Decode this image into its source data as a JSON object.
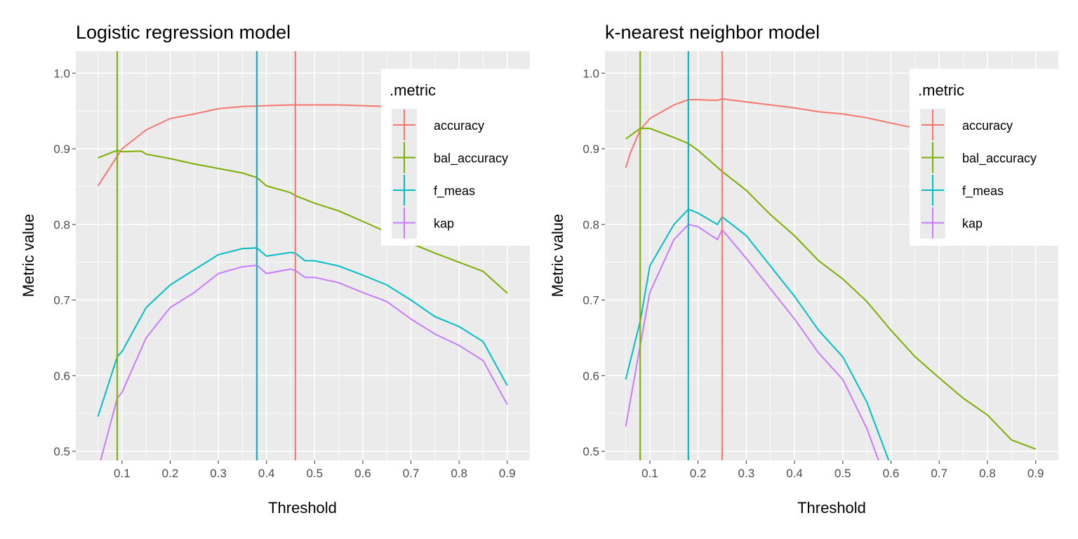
{
  "colors": {
    "accuracy": "#F8766D",
    "bal_accuracy": "#7CAE00",
    "f_meas": "#00BFC4",
    "kap": "#C77CFF",
    "panel": "#EBEBEB",
    "grid": "#FFFFFF"
  },
  "chart_data": [
    {
      "type": "line",
      "title": "Logistic regression model",
      "xlabel": "Threshold",
      "ylabel": "Metric value",
      "xlim": [
        0.004,
        0.947
      ],
      "ylim": [
        0.488,
        1.029
      ],
      "xticks": [
        "0.1",
        "0.2",
        "0.3",
        "0.4",
        "0.5",
        "0.6",
        "0.7",
        "0.8",
        "0.9"
      ],
      "yticks": [
        "0.5",
        "0.6",
        "0.7",
        "0.8",
        "0.9",
        "1.0"
      ],
      "grid": true,
      "legend": {
        "title": ".metric",
        "position": "top-right",
        "entries": [
          "accuracy",
          "bal_accuracy",
          "f_meas",
          "kap"
        ]
      },
      "vlines": {
        "accuracy": 0.46,
        "bal_accuracy": 0.09,
        "f_meas": 0.38,
        "kap": 0.38
      },
      "series": [
        {
          "name": "accuracy",
          "x": [
            0.05,
            0.1,
            0.15,
            0.2,
            0.25,
            0.3,
            0.35,
            0.4,
            0.45,
            0.5,
            0.55,
            0.6,
            0.65,
            0.7,
            0.75,
            0.8,
            0.85,
            0.9
          ],
          "y": [
            0.851,
            0.9,
            0.925,
            0.94,
            0.946,
            0.953,
            0.956,
            0.957,
            0.958,
            0.958,
            0.958,
            0.957,
            0.956,
            0.955,
            0.953,
            0.95,
            0.947,
            0.942
          ]
        },
        {
          "name": "bal_accuracy",
          "x": [
            0.05,
            0.09,
            0.1,
            0.14,
            0.15,
            0.2,
            0.25,
            0.3,
            0.35,
            0.38,
            0.4,
            0.45,
            0.46,
            0.5,
            0.55,
            0.6,
            0.65,
            0.7,
            0.75,
            0.8,
            0.85,
            0.9
          ],
          "y": [
            0.888,
            0.898,
            0.896,
            0.897,
            0.893,
            0.887,
            0.88,
            0.874,
            0.868,
            0.862,
            0.851,
            0.842,
            0.838,
            0.828,
            0.818,
            0.804,
            0.79,
            0.775,
            0.762,
            0.75,
            0.738,
            0.709
          ]
        },
        {
          "name": "f_meas",
          "x": [
            0.05,
            0.09,
            0.1,
            0.15,
            0.2,
            0.25,
            0.3,
            0.35,
            0.38,
            0.4,
            0.45,
            0.46,
            0.48,
            0.5,
            0.55,
            0.6,
            0.65,
            0.7,
            0.75,
            0.8,
            0.85,
            0.9
          ],
          "y": [
            0.546,
            0.625,
            0.632,
            0.69,
            0.72,
            0.74,
            0.76,
            0.768,
            0.769,
            0.758,
            0.763,
            0.762,
            0.752,
            0.752,
            0.745,
            0.733,
            0.72,
            0.7,
            0.678,
            0.665,
            0.645,
            0.587
          ]
        },
        {
          "name": "kap",
          "x": [
            0.05,
            0.09,
            0.1,
            0.15,
            0.2,
            0.25,
            0.3,
            0.35,
            0.38,
            0.4,
            0.45,
            0.46,
            0.48,
            0.5,
            0.55,
            0.6,
            0.65,
            0.7,
            0.75,
            0.8,
            0.85,
            0.9
          ],
          "y": [
            0.475,
            0.57,
            0.578,
            0.65,
            0.69,
            0.71,
            0.735,
            0.744,
            0.746,
            0.735,
            0.741,
            0.739,
            0.73,
            0.73,
            0.723,
            0.71,
            0.698,
            0.675,
            0.655,
            0.64,
            0.62,
            0.562
          ]
        }
      ]
    },
    {
      "type": "line",
      "title": "k-nearest neighbor model",
      "xlabel": "Threshold",
      "ylabel": "Metric value",
      "xlim": [
        0.007,
        0.947
      ],
      "ylim": [
        0.488,
        1.029
      ],
      "xticks": [
        "0.1",
        "0.2",
        "0.3",
        "0.4",
        "0.5",
        "0.6",
        "0.7",
        "0.8",
        "0.9"
      ],
      "yticks": [
        "0.5",
        "0.6",
        "0.7",
        "0.8",
        "0.9",
        "1.0"
      ],
      "grid": true,
      "legend": {
        "title": ".metric",
        "position": "top-right",
        "entries": [
          "accuracy",
          "bal_accuracy",
          "f_meas",
          "kap"
        ]
      },
      "vlines": {
        "accuracy": 0.25,
        "bal_accuracy": 0.08,
        "f_meas": 0.18,
        "kap": 0.18
      },
      "series": [
        {
          "name": "accuracy",
          "x": [
            0.05,
            0.06,
            0.08,
            0.1,
            0.15,
            0.18,
            0.2,
            0.24,
            0.25,
            0.3,
            0.35,
            0.4,
            0.45,
            0.5,
            0.55,
            0.6,
            0.63,
            0.7,
            0.8,
            0.9
          ],
          "y": [
            0.875,
            0.895,
            0.925,
            0.94,
            0.958,
            0.965,
            0.965,
            0.964,
            0.966,
            0.962,
            0.958,
            0.954,
            0.949,
            0.946,
            0.941,
            0.934,
            0.93,
            0.922,
            0.91,
            0.895
          ]
        },
        {
          "name": "bal_accuracy",
          "x": [
            0.05,
            0.08,
            0.1,
            0.15,
            0.18,
            0.2,
            0.25,
            0.3,
            0.35,
            0.4,
            0.45,
            0.5,
            0.55,
            0.6,
            0.65,
            0.7,
            0.75,
            0.8,
            0.85,
            0.9
          ],
          "y": [
            0.913,
            0.927,
            0.927,
            0.915,
            0.907,
            0.898,
            0.87,
            0.845,
            0.813,
            0.785,
            0.752,
            0.728,
            0.698,
            0.66,
            0.625,
            0.597,
            0.57,
            0.548,
            0.515,
            0.503
          ]
        },
        {
          "name": "f_meas",
          "x": [
            0.05,
            0.08,
            0.1,
            0.15,
            0.18,
            0.2,
            0.24,
            0.25,
            0.3,
            0.35,
            0.4,
            0.45,
            0.5,
            0.55,
            0.6
          ],
          "y": [
            0.595,
            0.672,
            0.745,
            0.8,
            0.82,
            0.815,
            0.8,
            0.81,
            0.785,
            0.745,
            0.705,
            0.66,
            0.625,
            0.565,
            0.48
          ]
        },
        {
          "name": "kap",
          "x": [
            0.05,
            0.08,
            0.1,
            0.15,
            0.18,
            0.2,
            0.24,
            0.25,
            0.3,
            0.35,
            0.4,
            0.45,
            0.5,
            0.55,
            0.58
          ],
          "y": [
            0.533,
            0.64,
            0.71,
            0.78,
            0.8,
            0.797,
            0.78,
            0.793,
            0.755,
            0.715,
            0.675,
            0.63,
            0.595,
            0.53,
            0.478
          ]
        }
      ]
    }
  ]
}
